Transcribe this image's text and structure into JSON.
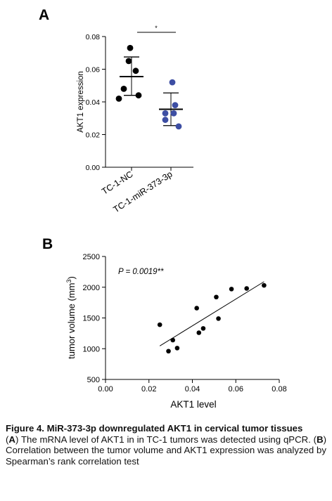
{
  "panels": {
    "a_label": "A",
    "b_label": "B"
  },
  "chart_data": [
    {
      "type": "scatter",
      "subtype": "dot-plot-mean-sd",
      "categories": [
        "TC-1-NC",
        "TC-1-miR-373-3p"
      ],
      "series": [
        {
          "name": "TC-1-NC",
          "color": "#000000",
          "values": [
            0.073,
            0.065,
            0.059,
            0.048,
            0.044,
            0.042
          ],
          "mean": 0.0555,
          "sd_range": [
            0.044,
            0.0675
          ]
        },
        {
          "name": "TC-1-miR-373-3p",
          "color": "#3d4ea3",
          "values": [
            0.052,
            0.038,
            0.033,
            0.033,
            0.029,
            0.025
          ],
          "mean": 0.0355,
          "sd_range": [
            0.0255,
            0.0455
          ]
        }
      ],
      "ylabel": "AKT1 expression",
      "ylim": [
        0,
        0.08
      ],
      "yticks": [
        "0.00",
        "0.02",
        "0.04",
        "0.06",
        "0.08"
      ],
      "significance": "*",
      "grid": false
    },
    {
      "type": "scatter",
      "x": [
        0.025,
        0.029,
        0.031,
        0.033,
        0.042,
        0.043,
        0.045,
        0.051,
        0.052,
        0.058,
        0.065,
        0.073
      ],
      "y": [
        1390,
        960,
        1140,
        1010,
        1660,
        1260,
        1330,
        1840,
        1490,
        1970,
        1980,
        2030
      ],
      "trendline": {
        "x": [
          0.025,
          0.073
        ],
        "y": [
          1045,
          2090
        ]
      },
      "xlabel": "AKT1 level",
      "ylabel_prefix": "tumor volume (mm",
      "ylabel_sup": "3",
      "ylabel_suffix": ")",
      "annotation": "P = 0.0019**",
      "xlim": [
        0,
        0.08
      ],
      "ylim": [
        500,
        2500
      ],
      "xticks": [
        "0.00",
        "0.02",
        "0.04",
        "0.06",
        "0.08"
      ],
      "yticks": [
        "500",
        "1000",
        "1500",
        "2000",
        "2500"
      ],
      "marker_color": "#000000",
      "grid": false
    }
  ],
  "caption": {
    "title": "Figure 4. MiR-373-3p downregulated AKT1 in cervical tumor tissues",
    "a_label": "A",
    "a_text_1": ") The mRNA level of AKT1 in in TC-1 tumors was detected using qPCR. (",
    "b_label": "B",
    "b_text": ") Correlation between the tumor volume and AKT1 expression was analyzed by Spearman’s rank correlation test"
  }
}
